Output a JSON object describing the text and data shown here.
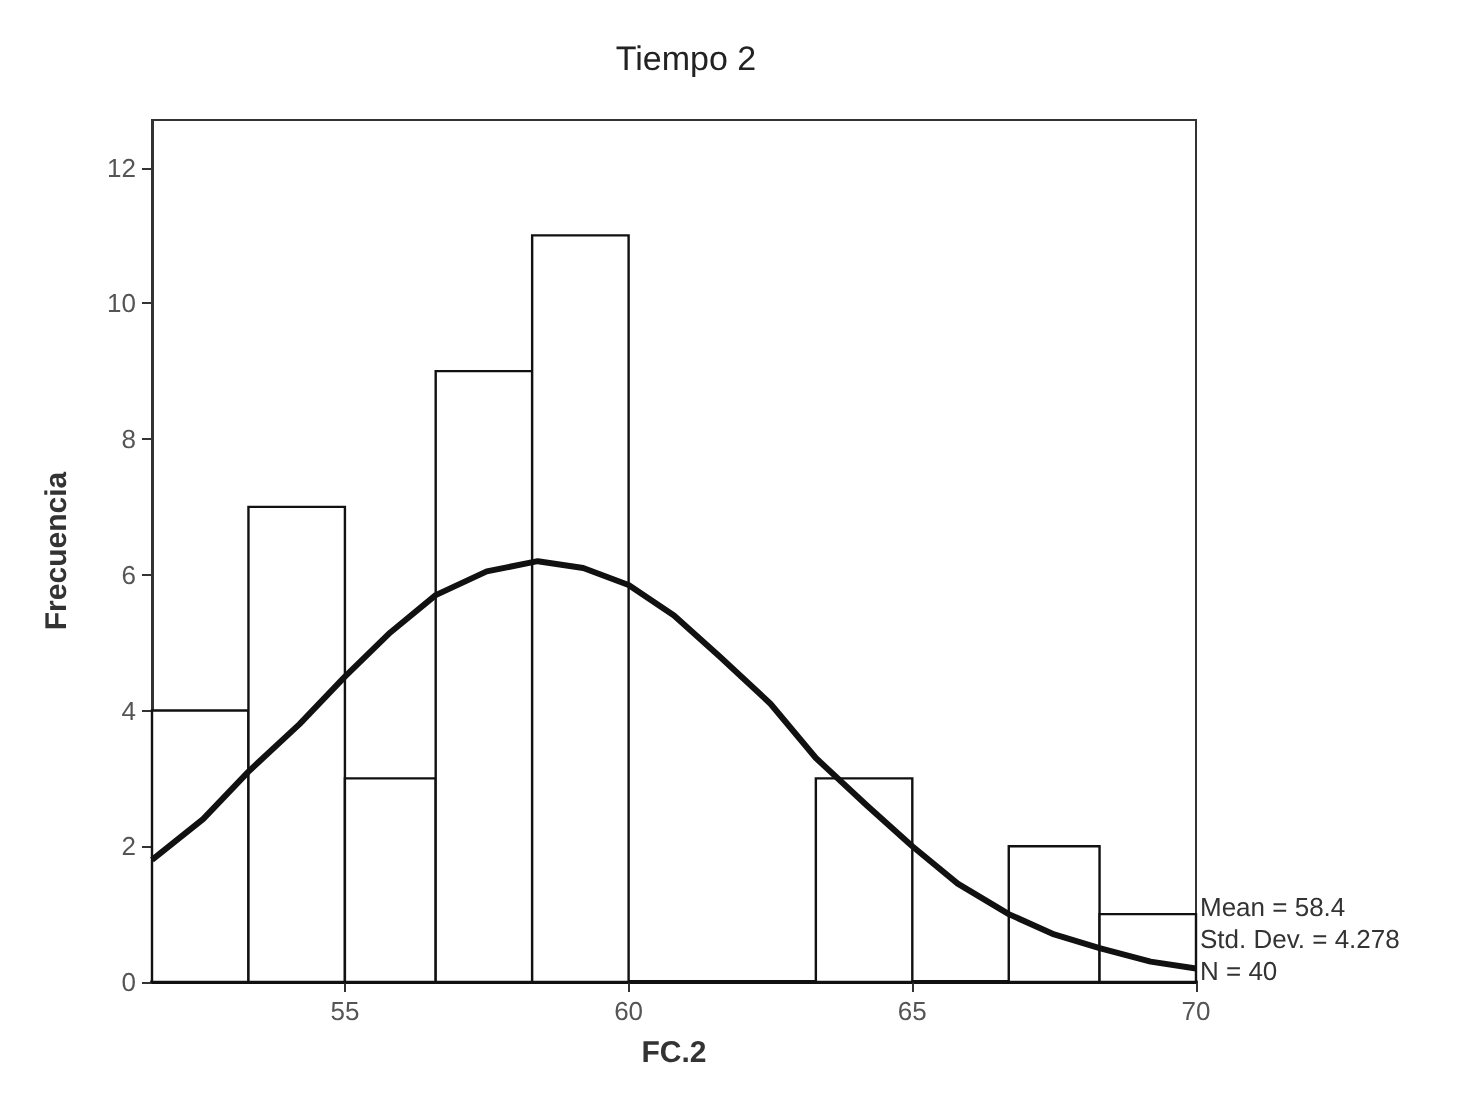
{
  "chart_data": {
    "type": "histogram",
    "title": "Tiempo 2",
    "xlabel": "FC.2",
    "ylabel": "Frecuencia",
    "bins": [
      51.6,
      53.3,
      55.0,
      56.6,
      58.3,
      60.0,
      63.3,
      65.0,
      66.7,
      68.3,
      70.0
    ],
    "values": [
      4,
      7,
      3,
      9,
      11,
      0,
      3,
      0,
      2,
      1
    ],
    "color": "#ffffff",
    "series": [
      {
        "type": "line",
        "color": "#111111",
        "x": [
          51.6,
          52.5,
          53.3,
          54.2,
          55.0,
          55.8,
          56.6,
          57.5,
          58.4,
          59.2,
          60.0,
          60.8,
          61.6,
          62.5,
          63.3,
          64.2,
          65.0,
          65.8,
          66.7,
          67.5,
          68.3,
          69.2,
          70.0
        ],
        "values": [
          1.8,
          2.4,
          3.1,
          3.8,
          4.5,
          5.15,
          5.7,
          6.05,
          6.2,
          6.1,
          5.85,
          5.4,
          4.8,
          4.1,
          3.3,
          2.6,
          2.0,
          1.45,
          1.0,
          0.7,
          0.5,
          0.3,
          0.2
        ]
      }
    ],
    "xlim": [
      51.6,
      70
    ],
    "xticks": [
      55,
      60,
      65,
      70
    ],
    "ylim": [
      0,
      12.7
    ],
    "yticks": [
      0,
      2,
      4,
      6,
      8,
      10,
      12
    ],
    "grid": false,
    "marker": "none",
    "line_style": "solid",
    "annotations": [
      "Mean = 58.4",
      "Std. Dev. = 4.278",
      "N = 40"
    ]
  }
}
